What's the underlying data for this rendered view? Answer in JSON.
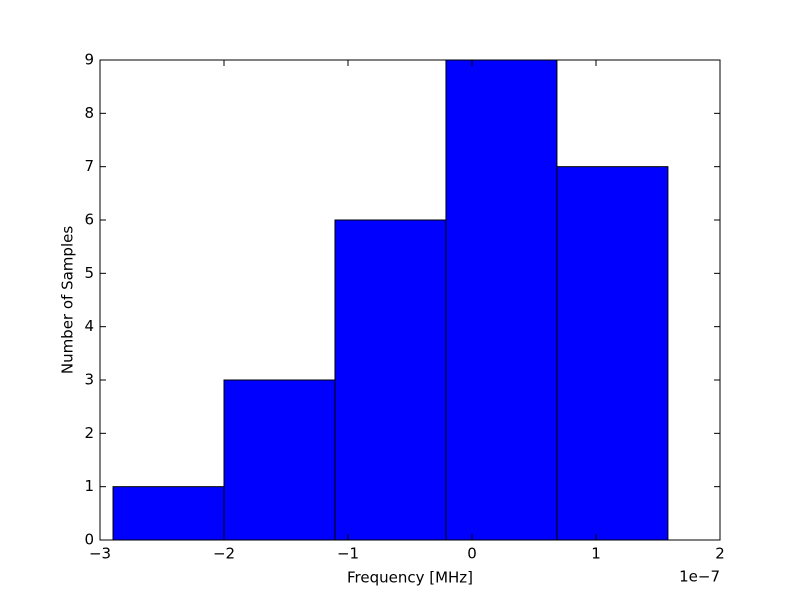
{
  "chart_data": {
    "type": "histogram",
    "xlabel": "Frequency [MHz]",
    "ylabel": "Number of Samples",
    "x_offset_label": "1e−7",
    "bins": [
      -2.895,
      -2.0,
      -1.105,
      -0.21,
      0.685,
      1.58
    ],
    "values": [
      1,
      3,
      6,
      9,
      7
    ],
    "color": "#0000ff",
    "xlim": [
      -3,
      2
    ],
    "xticks": [
      {
        "value": -3,
        "label": "−3"
      },
      {
        "value": -2,
        "label": "−2"
      },
      {
        "value": -1,
        "label": "−1"
      },
      0,
      1,
      2
    ],
    "ylim": [
      0,
      9
    ],
    "yticks": [
      0,
      1,
      2,
      3,
      4,
      5,
      6,
      7,
      8,
      9
    ],
    "grid": false
  }
}
